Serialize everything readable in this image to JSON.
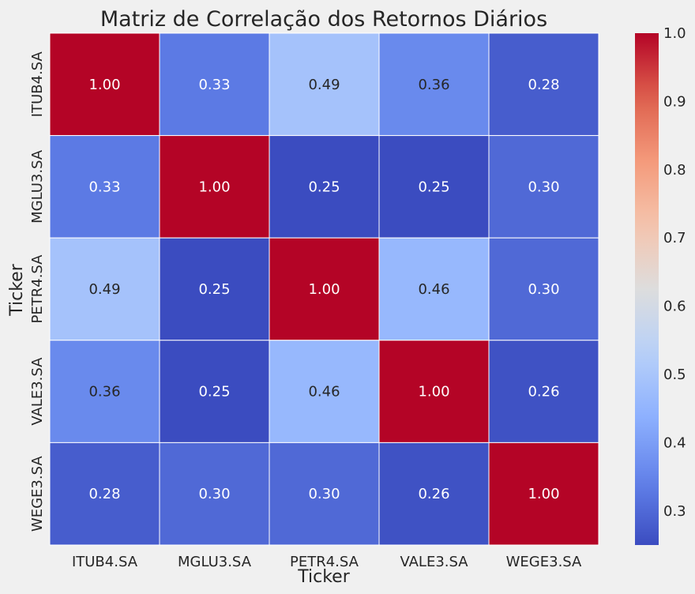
{
  "chart_data": {
    "type": "heatmap",
    "title": "Matriz de Correlação dos Retornos Diários",
    "xlabel": "Ticker",
    "ylabel": "Ticker",
    "x_categories": [
      "ITUB4.SA",
      "MGLU3.SA",
      "PETR4.SA",
      "VALE3.SA",
      "WEGE3.SA"
    ],
    "y_categories": [
      "ITUB4.SA",
      "MGLU3.SA",
      "PETR4.SA",
      "VALE3.SA",
      "WEGE3.SA"
    ],
    "values": [
      [
        1.0,
        0.33,
        0.49,
        0.36,
        0.28
      ],
      [
        0.33,
        1.0,
        0.25,
        0.25,
        0.3
      ],
      [
        0.49,
        0.25,
        1.0,
        0.46,
        0.3
      ],
      [
        0.36,
        0.25,
        0.46,
        1.0,
        0.26
      ],
      [
        0.28,
        0.3,
        0.3,
        0.26,
        1.0
      ]
    ],
    "value_labels": [
      [
        "1.00",
        "0.33",
        "0.49",
        "0.36",
        "0.28"
      ],
      [
        "0.33",
        "1.00",
        "0.25",
        "0.25",
        "0.30"
      ],
      [
        "0.49",
        "0.25",
        "1.00",
        "0.46",
        "0.30"
      ],
      [
        "0.36",
        "0.25",
        "0.46",
        "1.00",
        "0.26"
      ],
      [
        "0.28",
        "0.30",
        "0.30",
        "0.26",
        "1.00"
      ]
    ],
    "colormap": "coolwarm",
    "vmin": 0.25,
    "vmax": 1.0,
    "colorbar_ticks": [
      "0.3",
      "0.4",
      "0.5",
      "0.6",
      "0.7",
      "0.8",
      "0.9",
      "1.0"
    ],
    "colorbar_tick_values": [
      0.3,
      0.4,
      0.5,
      0.6,
      0.7,
      0.8,
      0.9,
      1.0
    ],
    "annotated": true,
    "grid": false,
    "colors": {
      "background": "#f0f0f0",
      "cell_border": "#ffffff",
      "text": "#262626"
    }
  }
}
